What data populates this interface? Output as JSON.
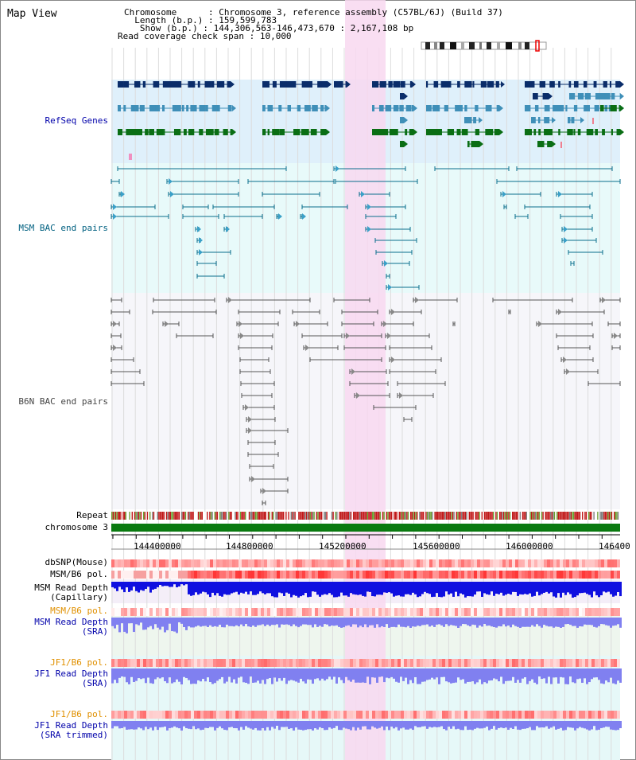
{
  "header": {
    "title": "Map View",
    "chromosome_key": "Chromosome      ",
    "chromosome_val": ": Chromosome 3, reference assembly (C57BL/6J) (Build 37)",
    "length_key": "  Length (b.p.) ",
    "length_val": ": 159,599,783",
    "show_key": "   Show (b.p.) ",
    "show_val": ": 144,306,563-146,473,670 : 2,167,108 bp",
    "span_key": "Read coverage check span ",
    "span_val": ": 10,000"
  },
  "tracks": {
    "refseq": "RefSeq Genes",
    "msm_bac": "MSM BAC end pairs",
    "b6n_bac": "B6N BAC end pairs",
    "repeat": "Repeat",
    "chromosome": "chromosome 3",
    "dbsnp": "dbSNP(Mouse)",
    "msm_b6_pol_1": "MSM/B6 pol.",
    "msm_depth_cap_1": "MSM Read Depth",
    "msm_depth_cap_2": "(Capillary)",
    "msm_b6_pol_2": "MSM/B6 pol.",
    "msm_depth_sra_1": "MSM Read Depth",
    "msm_depth_sra_2": "(SRA)",
    "jf1_pol_1": "JF1/B6 pol.",
    "jf1_depth_sra_1": "JF1 Read Depth",
    "jf1_depth_sra_2": "(SRA)",
    "jf1_pol_2": "JF1/B6 pol.",
    "jf1_depth_trim_1": "JF1 Read Depth",
    "jf1_depth_trim_2": "(SRA trimmed)"
  },
  "axis": {
    "ticks": [
      "144400000",
      "144800000",
      "145200000",
      "145600000",
      "146000000",
      "146400"
    ]
  },
  "colors": {
    "refseq_bg": "#dff0fb",
    "bac_bg": "#e8fafa",
    "highlight": "#f8d8f0",
    "gene_dark": "#0a2d6a",
    "gene_mid": "#3f8fb8",
    "gene_green": "#0a6e14",
    "chromosome_bar": "#0a7a10",
    "depth_blue": "#1010e0",
    "depth_light": "#8080f0",
    "pol_red": "#f03030"
  }
}
